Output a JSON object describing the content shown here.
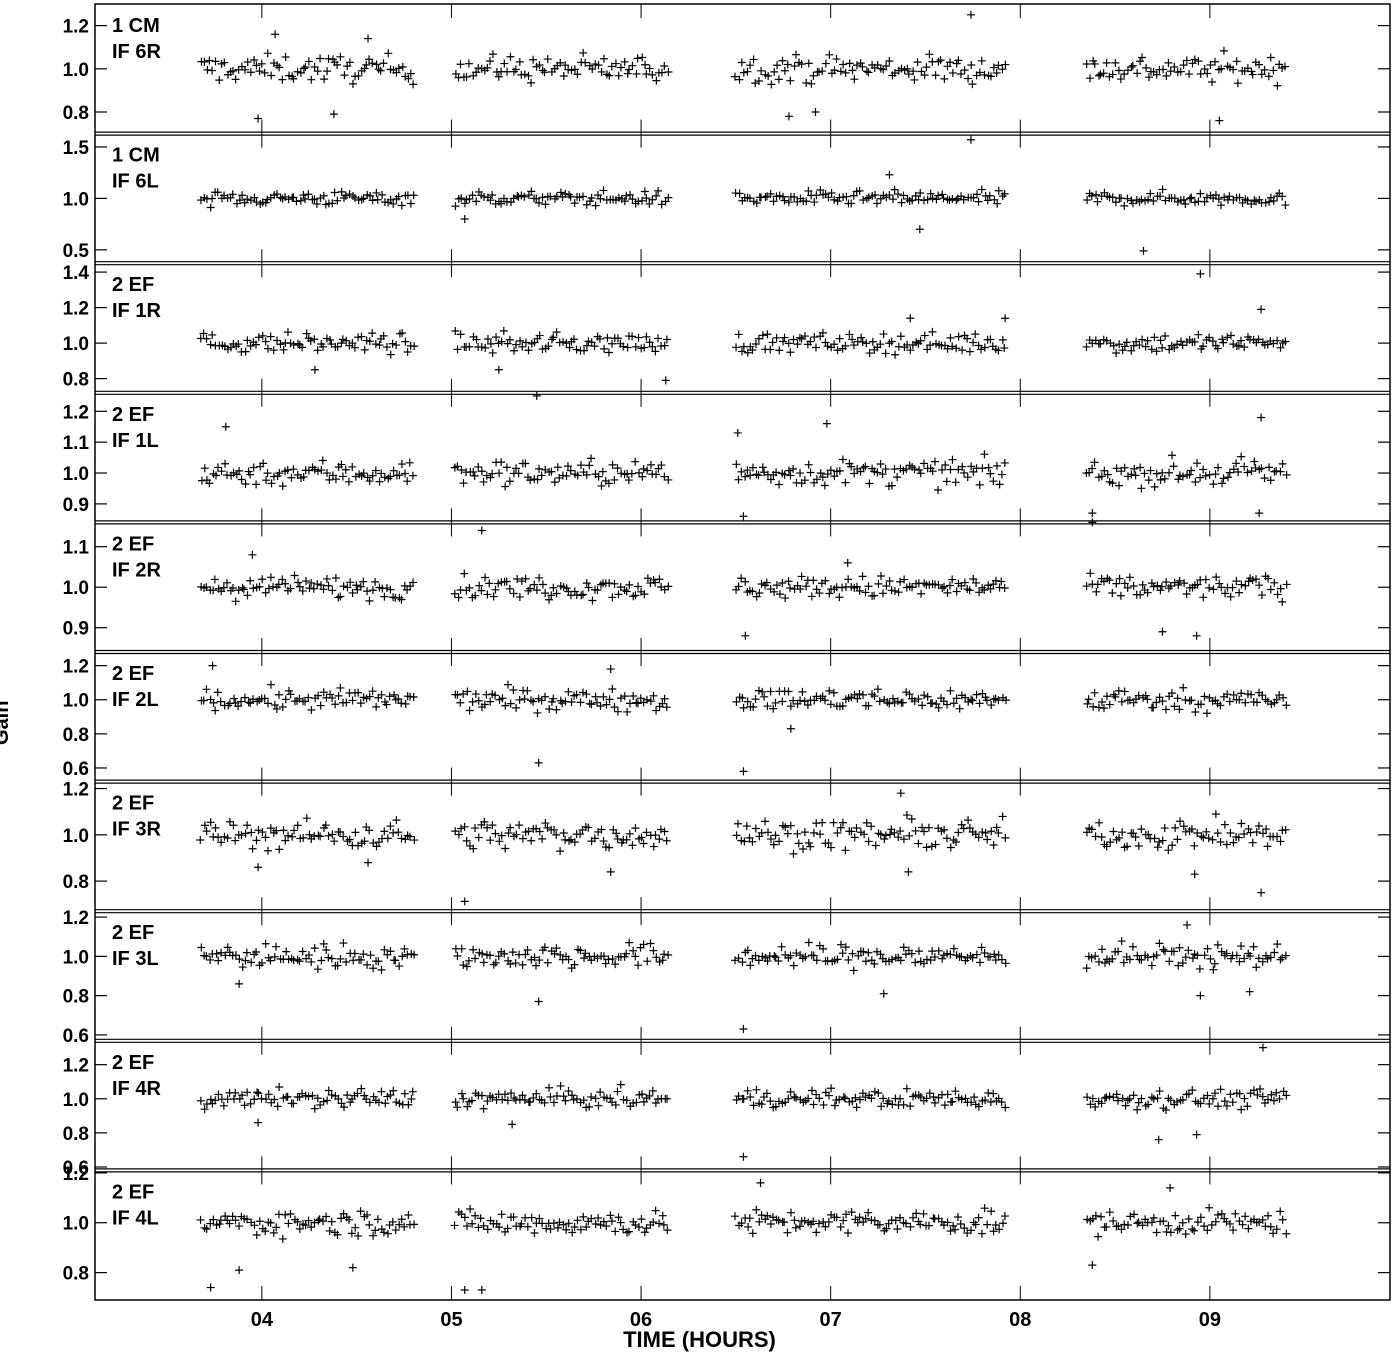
{
  "chart_data": {
    "type": "scatter",
    "xlabel": "TIME (HOURS)",
    "ylabel": "Gain",
    "xlim": [
      3.12,
      9.95
    ],
    "x_ticks": [
      4,
      5,
      6,
      7,
      8,
      9
    ],
    "x_tick_labels": [
      "04",
      "05",
      "06",
      "07",
      "08",
      "09"
    ],
    "marker": "+",
    "scan_blocks": [
      [
        3.68,
        4.8
      ],
      [
        5.02,
        6.14
      ],
      [
        6.5,
        7.92
      ],
      [
        8.35,
        9.4
      ]
    ],
    "panels": [
      {
        "label1": "1 CM",
        "label2": "IF 6R",
        "ylim": [
          0.7,
          1.3
        ],
        "yticks": [
          0.8,
          1.0,
          1.2
        ],
        "ytick_labels": [
          "0.8",
          "1.0",
          "1.2"
        ],
        "spread": 0.045,
        "outliers": [
          [
            3.98,
            0.77
          ],
          [
            4.07,
            1.16
          ],
          [
            4.38,
            0.79
          ],
          [
            4.56,
            1.14
          ],
          [
            7.74,
            1.25
          ],
          [
            6.78,
            0.78
          ],
          [
            6.92,
            0.8
          ],
          [
            9.05,
            0.76
          ]
        ]
      },
      {
        "label1": "1 CM",
        "label2": "IF 6L",
        "ylim": [
          0.37,
          1.63
        ],
        "yticks": [
          0.5,
          1.0,
          1.5
        ],
        "ytick_labels": [
          "0.5",
          "1.0",
          "1.5"
        ],
        "spread": 0.05,
        "outliers": [
          [
            7.74,
            1.57
          ],
          [
            7.31,
            1.23
          ],
          [
            7.47,
            0.7
          ],
          [
            8.65,
            0.49
          ],
          [
            5.07,
            0.8
          ]
        ]
      },
      {
        "label1": "2 EF",
        "label2": "IF 1R",
        "ylim": [
          0.72,
          1.45
        ],
        "yticks": [
          0.8,
          1.0,
          1.2,
          1.4
        ],
        "ytick_labels": [
          "0.8",
          "1.0",
          "1.2",
          "1.4"
        ],
        "spread": 0.04,
        "outliers": [
          [
            6.13,
            0.79
          ],
          [
            8.95,
            1.39
          ],
          [
            9.27,
            1.19
          ],
          [
            7.42,
            1.14
          ],
          [
            4.28,
            0.85
          ],
          [
            5.25,
            0.85
          ],
          [
            7.92,
            1.14
          ]
        ]
      },
      {
        "label1": "2 EF",
        "label2": "IF 1L",
        "ylim": [
          0.84,
          1.26
        ],
        "yticks": [
          0.9,
          1.0,
          1.1,
          1.2
        ],
        "ytick_labels": [
          "0.9",
          "1.0",
          "1.1",
          "1.2"
        ],
        "spread": 0.03,
        "outliers": [
          [
            5.45,
            1.25
          ],
          [
            3.81,
            1.15
          ],
          [
            6.98,
            1.16
          ],
          [
            6.54,
            0.86
          ],
          [
            8.38,
            0.87
          ],
          [
            9.27,
            1.18
          ],
          [
            9.26,
            0.87
          ],
          [
            6.51,
            1.13
          ]
        ]
      },
      {
        "label1": "2 EF",
        "label2": "IF 2R",
        "ylim": [
          0.84,
          1.16
        ],
        "yticks": [
          0.9,
          1.0,
          1.1
        ],
        "ytick_labels": [
          "0.9",
          "1.0",
          "1.1"
        ],
        "spread": 0.02,
        "outliers": [
          [
            5.16,
            1.14
          ],
          [
            8.38,
            1.16
          ],
          [
            6.55,
            0.88
          ],
          [
            8.75,
            0.89
          ],
          [
            8.93,
            0.88
          ],
          [
            3.95,
            1.08
          ],
          [
            7.09,
            1.06
          ]
        ]
      },
      {
        "label1": "2 EF",
        "label2": "IF 2L",
        "ylim": [
          0.52,
          1.28
        ],
        "yticks": [
          0.6,
          0.8,
          1.0,
          1.2
        ],
        "ytick_labels": [
          "0.6",
          "0.8",
          "1.0",
          "1.2"
        ],
        "spread": 0.045,
        "outliers": [
          [
            5.46,
            0.63
          ],
          [
            6.54,
            0.58
          ],
          [
            3.74,
            1.2
          ],
          [
            5.84,
            1.18
          ],
          [
            6.79,
            0.83
          ]
        ]
      },
      {
        "label1": "2 EF",
        "label2": "IF 3R",
        "ylim": [
          0.67,
          1.23
        ],
        "yticks": [
          0.8,
          1.0,
          1.2
        ],
        "ytick_labels": [
          "0.8",
          "1.0",
          "1.2"
        ],
        "spread": 0.045,
        "outliers": [
          [
            9.27,
            0.75
          ],
          [
            7.37,
            1.18
          ],
          [
            7.41,
            0.84
          ],
          [
            5.84,
            0.84
          ],
          [
            8.92,
            0.83
          ],
          [
            3.98,
            0.86
          ],
          [
            4.56,
            0.88
          ]
        ]
      },
      {
        "label1": "2 EF",
        "label2": "IF 3L",
        "ylim": [
          0.57,
          1.23
        ],
        "yticks": [
          0.6,
          0.8,
          1.0,
          1.2
        ],
        "ytick_labels": [
          "0.6",
          "0.8",
          "1.0",
          "1.2"
        ],
        "spread": 0.045,
        "outliers": [
          [
            5.07,
            1.28
          ],
          [
            5.46,
            0.77
          ],
          [
            6.54,
            0.63
          ],
          [
            7.28,
            0.81
          ],
          [
            8.88,
            1.16
          ],
          [
            8.95,
            0.8
          ],
          [
            9.21,
            0.82
          ],
          [
            3.88,
            0.86
          ]
        ]
      },
      {
        "label1": "2 EF",
        "label2": "IF 4R",
        "ylim": [
          0.58,
          1.34
        ],
        "yticks": [
          0.6,
          0.8,
          1.0,
          1.2
        ],
        "ytick_labels": [
          "0.6",
          "0.8",
          "1.0",
          "1.2"
        ],
        "spread": 0.04,
        "outliers": [
          [
            9.28,
            1.3
          ],
          [
            6.54,
            0.66
          ],
          [
            8.73,
            0.76
          ],
          [
            8.93,
            0.79
          ],
          [
            5.32,
            0.85
          ],
          [
            3.98,
            0.86
          ]
        ]
      },
      {
        "label1": "2 EF",
        "label2": "IF 4L",
        "ylim": [
          0.69,
          1.21
        ],
        "yticks": [
          0.8,
          1.0,
          1.2
        ],
        "ytick_labels": [
          "0.8",
          "1.0",
          "1.2"
        ],
        "spread": 0.035,
        "outliers": [
          [
            3.73,
            0.74
          ],
          [
            5.07,
            0.73
          ],
          [
            5.16,
            0.73
          ],
          [
            6.63,
            1.16
          ],
          [
            8.38,
            0.83
          ],
          [
            3.88,
            0.81
          ],
          [
            4.48,
            0.82
          ],
          [
            8.79,
            1.14
          ]
        ]
      }
    ]
  }
}
